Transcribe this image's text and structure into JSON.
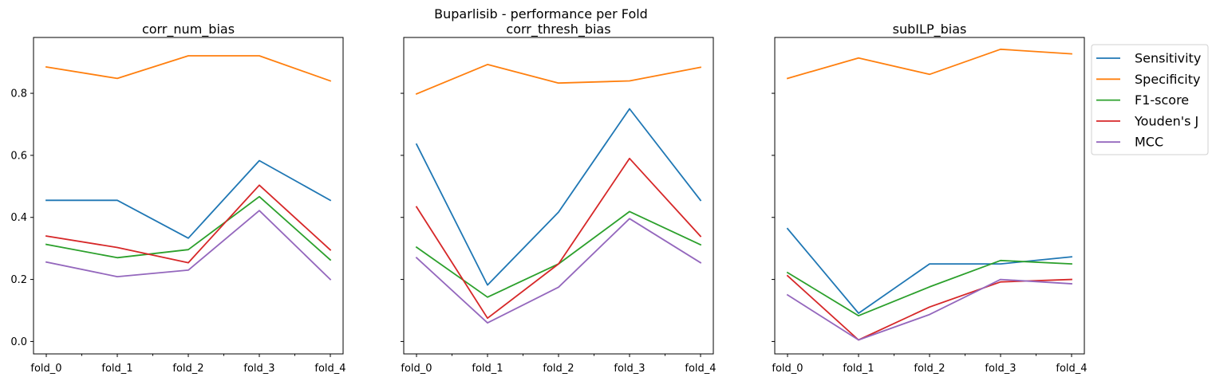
{
  "suptitle": "Buparlisib - performance per Fold",
  "chart_data": [
    {
      "type": "line",
      "title": "corr_num_bias",
      "categories": [
        "fold_0",
        "fold_1",
        "fold_2",
        "fold_3",
        "fold_4"
      ],
      "ylim": [
        -0.04,
        0.98
      ],
      "yticks": [
        0.0,
        0.2,
        0.4,
        0.6,
        0.8
      ],
      "ytick_labels": [
        "0.0",
        "0.2",
        "0.4",
        "0.6",
        "0.8"
      ],
      "show_ytick_labels": true,
      "series": [
        {
          "name": "Sensitivity",
          "values": [
            0.455,
            0.455,
            0.333,
            0.583,
            0.455
          ]
        },
        {
          "name": "Specificity",
          "values": [
            0.885,
            0.848,
            0.921,
            0.921,
            0.84
          ]
        },
        {
          "name": "F1-score",
          "values": [
            0.313,
            0.27,
            0.296,
            0.467,
            0.263
          ]
        },
        {
          "name": "Youden's J",
          "values": [
            0.34,
            0.303,
            0.254,
            0.504,
            0.295
          ]
        },
        {
          "name": "MCC",
          "values": [
            0.256,
            0.209,
            0.23,
            0.422,
            0.2
          ]
        }
      ]
    },
    {
      "type": "line",
      "title": "corr_thresh_bias",
      "categories": [
        "fold_0",
        "fold_1",
        "fold_2",
        "fold_3",
        "fold_4"
      ],
      "ylim": [
        -0.04,
        0.98
      ],
      "yticks": [
        0.0,
        0.2,
        0.4,
        0.6,
        0.8
      ],
      "ytick_labels": [
        "0.0",
        "0.2",
        "0.4",
        "0.6",
        "0.8"
      ],
      "show_ytick_labels": false,
      "series": [
        {
          "name": "Sensitivity",
          "values": [
            0.636,
            0.182,
            0.417,
            0.75,
            0.455
          ]
        },
        {
          "name": "Specificity",
          "values": [
            0.798,
            0.893,
            0.833,
            0.84,
            0.884
          ]
        },
        {
          "name": "F1-score",
          "values": [
            0.304,
            0.143,
            0.25,
            0.419,
            0.312
          ]
        },
        {
          "name": "Youden's J",
          "values": [
            0.434,
            0.075,
            0.25,
            0.59,
            0.339
          ]
        },
        {
          "name": "MCC",
          "values": [
            0.27,
            0.06,
            0.175,
            0.396,
            0.254
          ]
        }
      ]
    },
    {
      "type": "line",
      "title": "subILP_bias",
      "categories": [
        "fold_0",
        "fold_1",
        "fold_2",
        "fold_3",
        "fold_4"
      ],
      "ylim": [
        -0.04,
        0.98
      ],
      "yticks": [
        0.0,
        0.2,
        0.4,
        0.6,
        0.8
      ],
      "ytick_labels": [
        "0.0",
        "0.2",
        "0.4",
        "0.6",
        "0.8"
      ],
      "show_ytick_labels": false,
      "series": [
        {
          "name": "Sensitivity",
          "values": [
            0.364,
            0.091,
            0.25,
            0.25,
            0.273
          ]
        },
        {
          "name": "Specificity",
          "values": [
            0.848,
            0.914,
            0.861,
            0.942,
            0.927
          ]
        },
        {
          "name": "F1-score",
          "values": [
            0.222,
            0.083,
            0.176,
            0.261,
            0.25
          ]
        },
        {
          "name": "Youden's J",
          "values": [
            0.212,
            0.005,
            0.111,
            0.192,
            0.2
          ]
        },
        {
          "name": "MCC",
          "values": [
            0.15,
            0.005,
            0.087,
            0.2,
            0.186
          ]
        }
      ]
    }
  ],
  "legend": {
    "placement": "outside-right-top",
    "entries": [
      "Sensitivity",
      "Specificity",
      "F1-score",
      "Youden's J",
      "MCC"
    ]
  },
  "colors": {
    "Sensitivity": "#1f77b4",
    "Specificity": "#ff7f0e",
    "F1-score": "#2ca02c",
    "Youden's J": "#d62728",
    "MCC": "#9467bd"
  }
}
